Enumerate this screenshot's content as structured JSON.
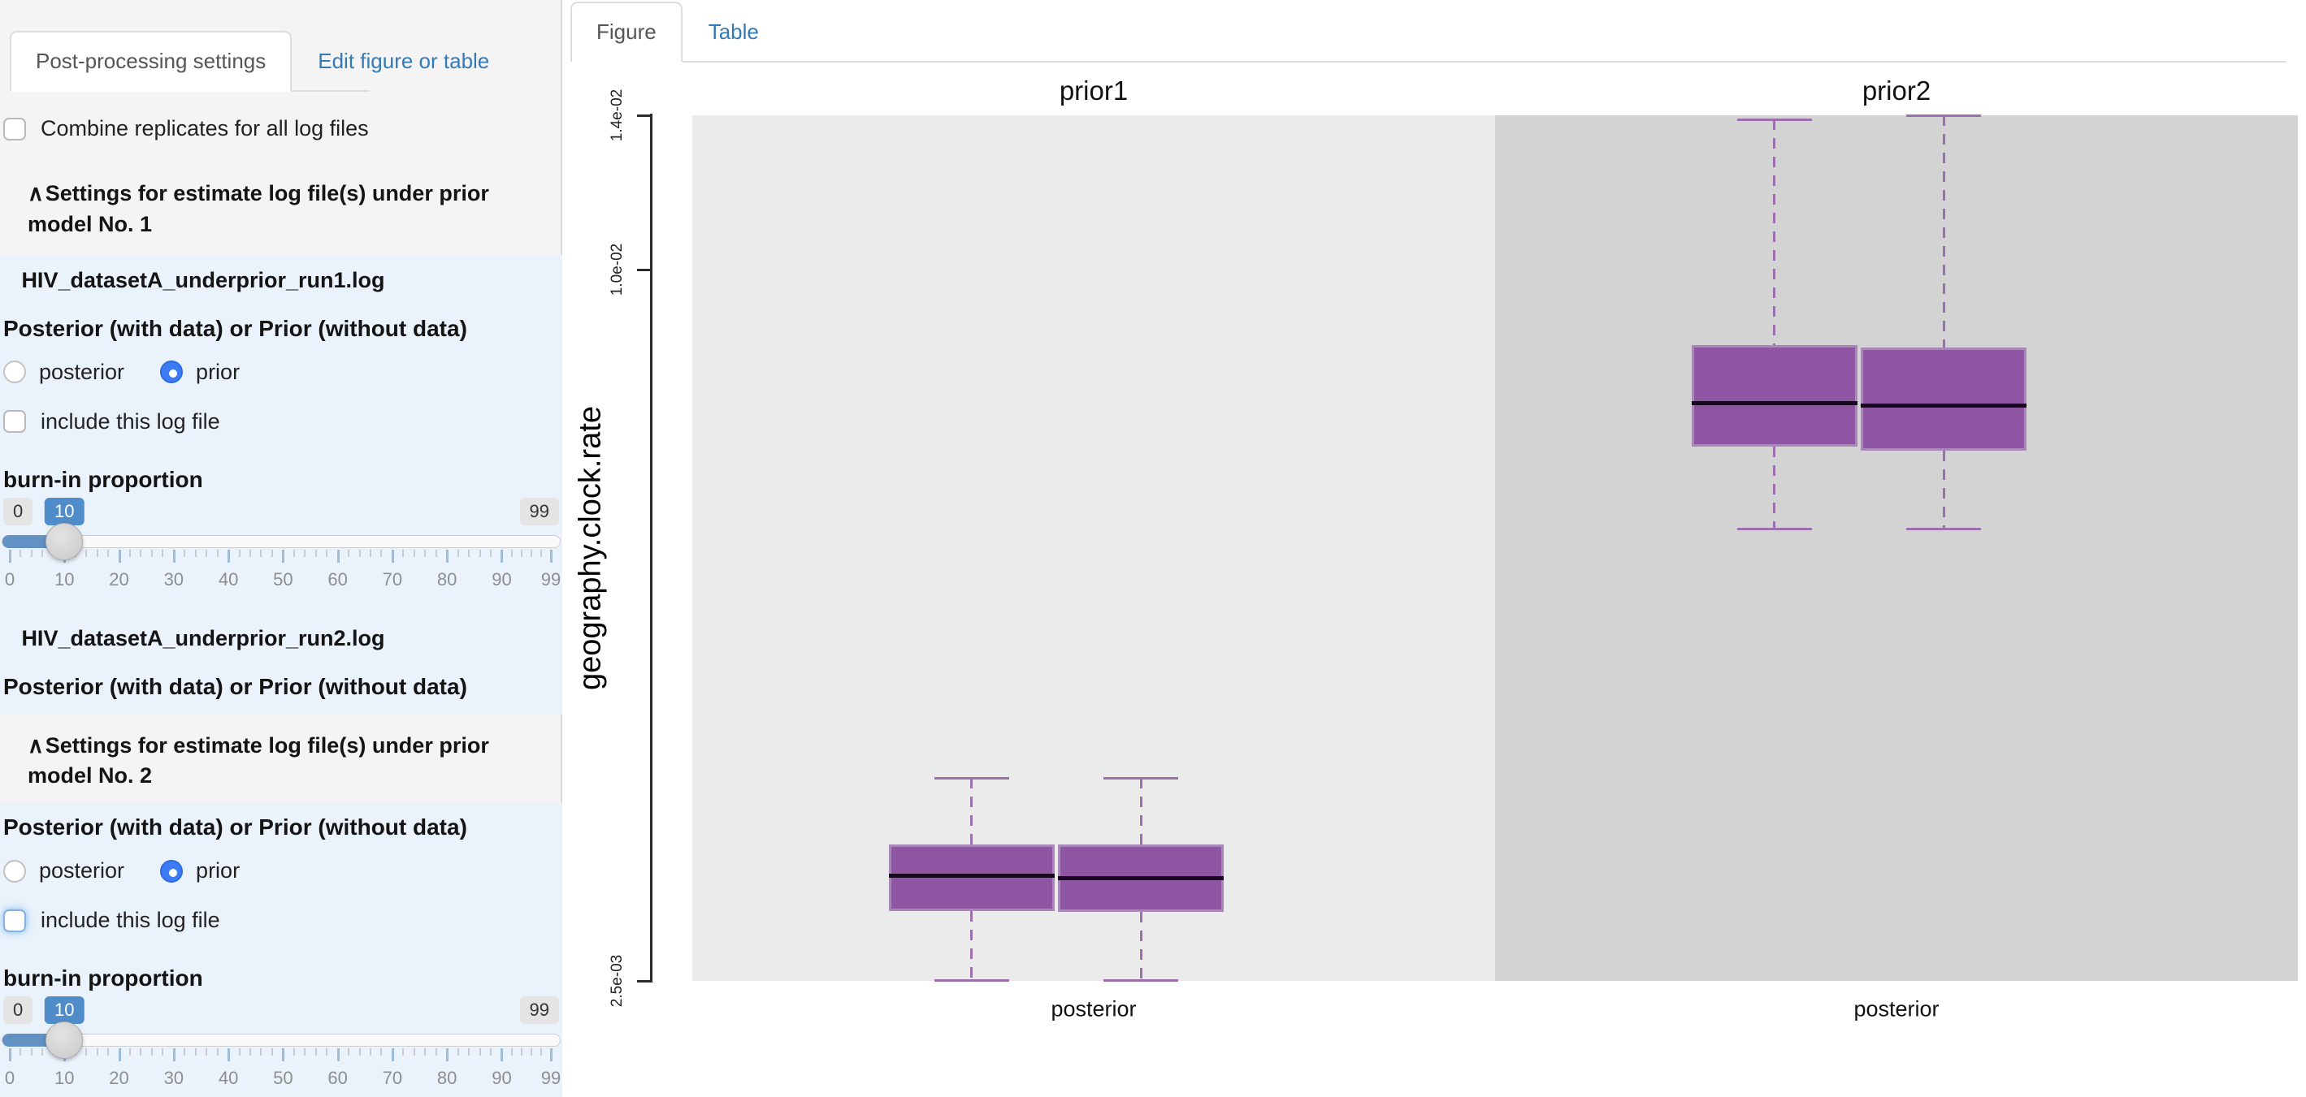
{
  "sidebar": {
    "tabs": [
      {
        "label": "Post-processing settings",
        "active": true
      },
      {
        "label": "Edit figure or table",
        "active": false
      }
    ],
    "combine_checkbox_label": "Combine replicates for all log files",
    "collapse_icon": "∧",
    "section1": {
      "title": "Settings for estimate log file(s) under prior model No. 1",
      "file1_name": "HIV_datasetA_underprior_run1.log",
      "pp_label": "Posterior (with data) or Prior (without data)",
      "radio_posterior": "posterior",
      "radio_prior": "prior",
      "radio_selected": "prior",
      "include_label": "include this log file",
      "include_checked": false,
      "burnin_label": "burn-in proportion",
      "file2_name": "HIV_datasetA_underprior_run2.log",
      "pp_label2": "Posterior (with data) or Prior (without data)"
    },
    "section2": {
      "title": "Settings for estimate log file(s) under prior model No. 2",
      "pp_label": "Posterior (with data) or Prior (without data)",
      "radio_posterior": "posterior",
      "radio_prior": "prior",
      "radio_selected": "prior",
      "include_label": "include this log file",
      "include_checked": false,
      "burnin_label": "burn-in proportion"
    },
    "slider": {
      "min": 0,
      "max": 99,
      "value": 10,
      "grid_labels": [
        "0",
        "10",
        "20",
        "30",
        "40",
        "50",
        "60",
        "70",
        "80",
        "90",
        "99"
      ]
    }
  },
  "main": {
    "tabs": [
      {
        "label": "Figure",
        "active": true
      },
      {
        "label": "Table",
        "active": false
      }
    ]
  },
  "chart_data": {
    "type": "boxplot",
    "ylabel": "geography.clock.rate",
    "ylim": [
      0.0025,
      0.014
    ],
    "grid": false,
    "y_ticks": [
      {
        "value": 0.014,
        "label": "1.4e-02"
      },
      {
        "value": 0.01,
        "label": "1.0e-02"
      },
      {
        "value": 0.0025,
        "label": "2.5e-03"
      }
    ],
    "facets": [
      {
        "title": "prior1",
        "xlabel": "posterior",
        "panel_bg": "#ebebeb",
        "boxes": [
          {
            "whisker_low": 0.0025,
            "q1": 0.00324,
            "median": 0.00361,
            "q3": 0.00394,
            "whisker_high": 0.00464
          },
          {
            "whisker_low": 0.0025,
            "q1": 0.00323,
            "median": 0.00359,
            "q3": 0.00394,
            "whisker_high": 0.00464
          }
        ]
      },
      {
        "title": "prior2",
        "xlabel": "posterior",
        "panel_bg": "#d3d3d3",
        "boxes": [
          {
            "whisker_low": 0.00726,
            "q1": 0.00813,
            "median": 0.0086,
            "q3": 0.0092,
            "whisker_high": 0.0139
          },
          {
            "whisker_low": 0.00726,
            "q1": 0.00809,
            "median": 0.00857,
            "q3": 0.00918,
            "whisker_high": 0.014
          }
        ]
      }
    ],
    "colors": {
      "box_fill": "#8e55a2",
      "box_border": "#a988b9",
      "median": "#16091d",
      "whisker": "#9b70ad",
      "axis": "#2b2b2b"
    }
  }
}
